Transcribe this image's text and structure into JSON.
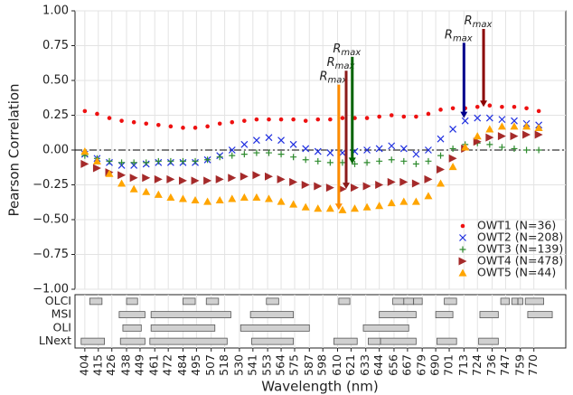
{
  "chart_data": {
    "type": "scatter",
    "xlabel": "Wavelength (nm)",
    "ylabel": "Pearson Correlation",
    "xlim": [
      396,
      796
    ],
    "ylim": [
      -1,
      1
    ],
    "xticks": [
      404,
      415,
      426,
      438,
      449,
      461,
      472,
      484,
      495,
      507,
      518,
      530,
      541,
      553,
      564,
      575,
      587,
      598,
      610,
      621,
      633,
      644,
      656,
      667,
      679,
      690,
      701,
      713,
      724,
      736,
      747,
      759,
      770
    ],
    "yticks": [
      {
        "value": 1,
        "label": "1.00"
      },
      {
        "value": 0.75,
        "label": "0.75"
      },
      {
        "value": 0.5,
        "label": "0.50"
      },
      {
        "value": 0.25,
        "label": "0.25"
      },
      {
        "value": 0,
        "label": "0.00"
      },
      {
        "value": -0.25,
        "label": "−0.25"
      },
      {
        "value": -0.5,
        "label": "−0.50"
      },
      {
        "value": -0.75,
        "label": "−0.75"
      },
      {
        "value": -1,
        "label": "−1.00"
      }
    ],
    "grid": true,
    "zero_line": true,
    "legend": "lower right",
    "x": [
      404,
      414,
      424,
      434,
      444,
      454,
      464,
      474,
      484,
      494,
      504,
      514,
      524,
      534,
      544,
      554,
      564,
      574,
      584,
      594,
      604,
      614,
      624,
      634,
      644,
      654,
      664,
      674,
      684,
      694,
      704,
      714,
      724,
      734,
      744,
      754,
      764,
      774
    ],
    "series": [
      {
        "name": "OWT1 (N=36)",
        "color": "#ee1111",
        "marker": "circle",
        "values": [
          0.28,
          0.26,
          0.23,
          0.21,
          0.2,
          0.19,
          0.18,
          0.17,
          0.16,
          0.16,
          0.17,
          0.19,
          0.2,
          0.21,
          0.22,
          0.22,
          0.22,
          0.22,
          0.21,
          0.22,
          0.22,
          0.23,
          0.23,
          0.23,
          0.24,
          0.25,
          0.24,
          0.24,
          0.26,
          0.29,
          0.3,
          0.3,
          0.31,
          0.32,
          0.31,
          0.31,
          0.3,
          0.28
        ]
      },
      {
        "name": "OWT2 (N=208)",
        "color": "#1f2fe0",
        "marker": "x",
        "values": [
          -0.03,
          -0.06,
          -0.09,
          -0.11,
          -0.11,
          -0.1,
          -0.09,
          -0.09,
          -0.09,
          -0.09,
          -0.07,
          -0.04,
          0,
          0.04,
          0.07,
          0.09,
          0.07,
          0.04,
          0.01,
          -0.01,
          -0.02,
          -0.02,
          -0.01,
          0,
          0.01,
          0.03,
          0.01,
          -0.03,
          0,
          0.08,
          0.15,
          0.21,
          0.23,
          0.23,
          0.22,
          0.21,
          0.19,
          0.18
        ]
      },
      {
        "name": "OWT3 (N=139)",
        "color": "#2e8b2e",
        "marker": "plus",
        "values": [
          -0.04,
          -0.06,
          -0.08,
          -0.09,
          -0.09,
          -0.09,
          -0.08,
          -0.08,
          -0.08,
          -0.08,
          -0.07,
          -0.05,
          -0.04,
          -0.03,
          -0.02,
          -0.02,
          -0.03,
          -0.05,
          -0.07,
          -0.08,
          -0.09,
          -0.09,
          -0.1,
          -0.09,
          -0.08,
          -0.07,
          -0.08,
          -0.1,
          -0.08,
          -0.04,
          0.01,
          0.04,
          0.05,
          0.04,
          0.02,
          0.01,
          0,
          0
        ]
      },
      {
        "name": "OWT4 (N=478)",
        "color": "#a52a2a",
        "marker": "triangle-right",
        "values": [
          -0.1,
          -0.13,
          -0.16,
          -0.18,
          -0.2,
          -0.2,
          -0.21,
          -0.21,
          -0.22,
          -0.22,
          -0.22,
          -0.21,
          -0.2,
          -0.19,
          -0.18,
          -0.19,
          -0.21,
          -0.23,
          -0.25,
          -0.26,
          -0.27,
          -0.28,
          -0.27,
          -0.26,
          -0.25,
          -0.23,
          -0.23,
          -0.24,
          -0.21,
          -0.14,
          -0.06,
          0.01,
          0.06,
          0.09,
          0.1,
          0.1,
          0.11,
          0.11
        ]
      },
      {
        "name": "OWT5 (N=44)",
        "color": "#ffa500",
        "marker": "triangle-up",
        "values": [
          -0.01,
          -0.08,
          -0.17,
          -0.24,
          -0.28,
          -0.3,
          -0.32,
          -0.34,
          -0.35,
          -0.36,
          -0.37,
          -0.36,
          -0.35,
          -0.34,
          -0.34,
          -0.35,
          -0.37,
          -0.39,
          -0.41,
          -0.42,
          -0.42,
          -0.43,
          -0.42,
          -0.41,
          -0.4,
          -0.38,
          -0.37,
          -0.37,
          -0.33,
          -0.24,
          -0.12,
          0.02,
          0.1,
          0.15,
          0.17,
          0.17,
          0.17,
          0.16
        ]
      }
    ],
    "annotations": [
      {
        "label": "R",
        "subscript": "max",
        "x": 611,
        "y_start": 0.47,
        "y_end": -0.43,
        "color": "#ff8c00"
      },
      {
        "label": "R",
        "subscript": "max",
        "x": 617,
        "y_start": 0.57,
        "y_end": -0.28,
        "color": "#8b1a1a"
      },
      {
        "label": "R",
        "subscript": "max",
        "x": 622,
        "y_start": 0.67,
        "y_end": -0.1,
        "color": "#006400"
      },
      {
        "label": "R",
        "subscript": "max",
        "x": 713,
        "y_start": 0.77,
        "y_end": 0.23,
        "color": "#00008b"
      },
      {
        "label": "R",
        "subscript": "max",
        "x": 729,
        "y_start": 0.87,
        "y_end": 0.31,
        "color": "#8b0000"
      }
    ],
    "sensors": [
      {
        "name": "OLCI",
        "bands": [
          [
            408,
            418
          ],
          [
            438,
            447
          ],
          [
            484,
            494
          ],
          [
            503,
            513
          ],
          [
            552,
            562
          ],
          [
            611,
            620
          ],
          [
            655,
            664
          ],
          [
            664,
            672
          ],
          [
            672,
            679
          ],
          [
            697,
            707
          ],
          [
            743,
            750
          ],
          [
            752,
            757
          ],
          [
            757,
            761
          ],
          [
            763,
            778
          ]
        ]
      },
      {
        "name": "MSI",
        "bands": [
          [
            432,
            453
          ],
          [
            458,
            523
          ],
          [
            539,
            574
          ],
          [
            644,
            674
          ],
          [
            690,
            704
          ],
          [
            726,
            741
          ],
          [
            765,
            785
          ]
        ]
      },
      {
        "name": "OLI",
        "bands": [
          [
            435,
            450
          ],
          [
            458,
            510
          ],
          [
            531,
            587
          ],
          [
            631,
            668
          ]
        ]
      },
      {
        "name": "LNext",
        "bands": [
          [
            401,
            420
          ],
          [
            433,
            453
          ],
          [
            457,
            520
          ],
          [
            540,
            574
          ],
          [
            607,
            626
          ],
          [
            635,
            645
          ],
          [
            645,
            674
          ],
          [
            691,
            707
          ],
          [
            725,
            741
          ]
        ]
      }
    ]
  }
}
